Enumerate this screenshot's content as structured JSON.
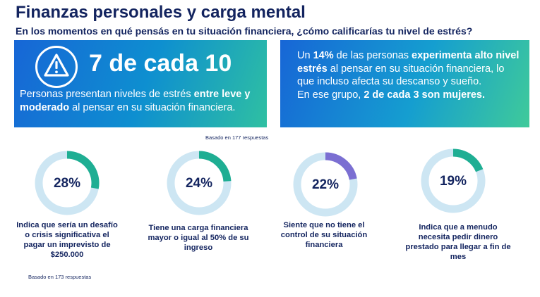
{
  "header": {
    "title": "Finanzas personales y carga mental",
    "subtitle": "En los momentos en qué pensás en tu situación financiera, ¿cómo calificarías tu nivel de estrés?"
  },
  "left_card": {
    "icon": "warning-icon",
    "headline": "7 de cada 10",
    "desc_part1": "Personas presentan niveles de estrés ",
    "desc_bold": "entre leve y moderado",
    "desc_part2": " al pensar en su situación financiera."
  },
  "right_card": {
    "t1": "Un ",
    "b1": "14%",
    "t2": " de las personas ",
    "b2": "experimenta alto nivel estrés",
    "t3": " al pensar en su situación financiera,  lo que incluso afecta su descanso y sueño.",
    "t4": "En ese grupo, ",
    "b3": "2 de cada 3 son mujeres."
  },
  "notes": {
    "top": "Basado en 177 respuestas",
    "bottom": "Basado en 173 respuestas"
  },
  "colors": {
    "track": "#cde6f3",
    "teal": "#1fae93",
    "purple": "#7b6fd2",
    "navy": "#13245f"
  },
  "chart_data": {
    "type": "donut",
    "items": [
      {
        "label": "28%",
        "value": 28,
        "color": "#1fae93",
        "caption": "Indica que sería un desafío o crisis significativa el pagar un imprevisto de $250.000"
      },
      {
        "label": "24%",
        "value": 24,
        "color": "#1fae93",
        "caption": "Tiene una carga financiera mayor o igual al 50% de su ingreso"
      },
      {
        "label": "22%",
        "value": 22,
        "color": "#7b6fd2",
        "caption": "Siente que no tiene el control de su situación financiera"
      },
      {
        "label": "19%",
        "value": 19,
        "color": "#1fae93",
        "caption": "Indica que a menudo necesita pedir dinero prestado para llegar a fin de mes"
      }
    ]
  }
}
